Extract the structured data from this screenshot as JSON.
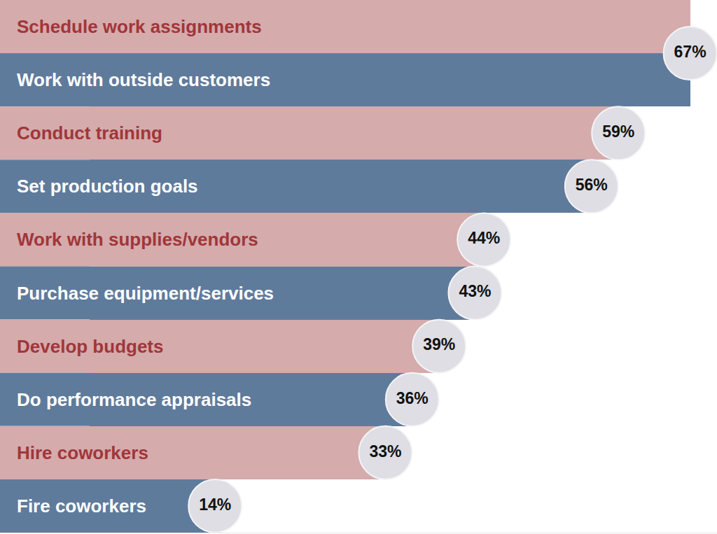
{
  "chart_data": {
    "type": "bar",
    "orientation": "horizontal",
    "categories": [
      "Schedule work assignments",
      "Work with outside customers",
      "Conduct training",
      "Set production goals",
      "Work with supplies/vendors",
      "Purchase equipment/services",
      "Develop budgets",
      "Do performance appraisals",
      "Hire coworkers",
      "Fire coworkers"
    ],
    "values": [
      67,
      67,
      59,
      56,
      44,
      43,
      39,
      36,
      33,
      14
    ],
    "value_labels": [
      null,
      "67%",
      "59%",
      "56%",
      "44%",
      "43%",
      "39%",
      "36%",
      "33%",
      "14%"
    ],
    "colors": [
      "#d5abac",
      "#5f7b9c",
      "#d5abac",
      "#5f7b9c",
      "#d5abac",
      "#5f7b9c",
      "#d5abac",
      "#5f7b9c",
      "#d5abac",
      "#5f7b9c"
    ],
    "xlim": [
      -10,
      70
    ],
    "data_labels": true,
    "tick_labels": false,
    "grid": false
  }
}
